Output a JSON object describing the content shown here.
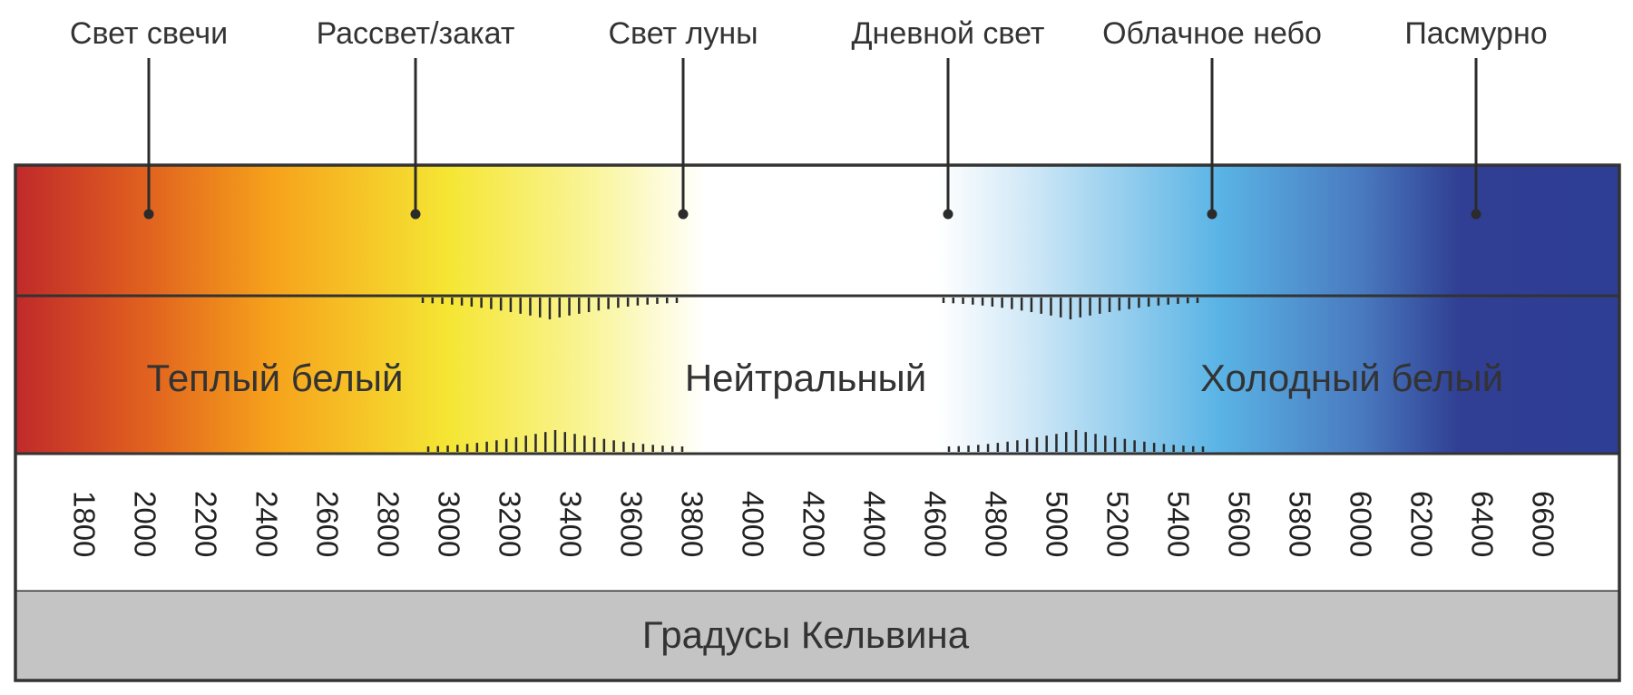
{
  "callouts": [
    {
      "label": "Свет свечи"
    },
    {
      "label": "Рассвет/закат"
    },
    {
      "label": "Свет луны"
    },
    {
      "label": "Дневной свет"
    },
    {
      "label": "Облачное небо"
    },
    {
      "label": "Пасмурно"
    }
  ],
  "zones": [
    {
      "label": "Теплый белый"
    },
    {
      "label": "Нейтральный"
    },
    {
      "label": "Холодный белый"
    }
  ],
  "kelvin_scale": {
    "ticks": [
      "1800",
      "2000",
      "2200",
      "2400",
      "2600",
      "2800",
      "3000",
      "3200",
      "3400",
      "3600",
      "3800",
      "4000",
      "4200",
      "4400",
      "4600",
      "4800",
      "5000",
      "5200",
      "5400",
      "5600",
      "5800",
      "6000",
      "6200",
      "6400",
      "6600"
    ]
  },
  "unit_label": "Градусы Кельвина",
  "colors": {
    "border": "#333333",
    "line": "#2b2b2b",
    "unit_band": "#c4c4c4",
    "gradient": [
      "#c0292a",
      "#e0601f",
      "#f6a21b",
      "#f5e633",
      "#f9f59a",
      "#ffffff",
      "#ffffff",
      "#d2e9f7",
      "#5ab4e5",
      "#4979bf",
      "#303f93",
      "#2e3e94"
    ]
  }
}
